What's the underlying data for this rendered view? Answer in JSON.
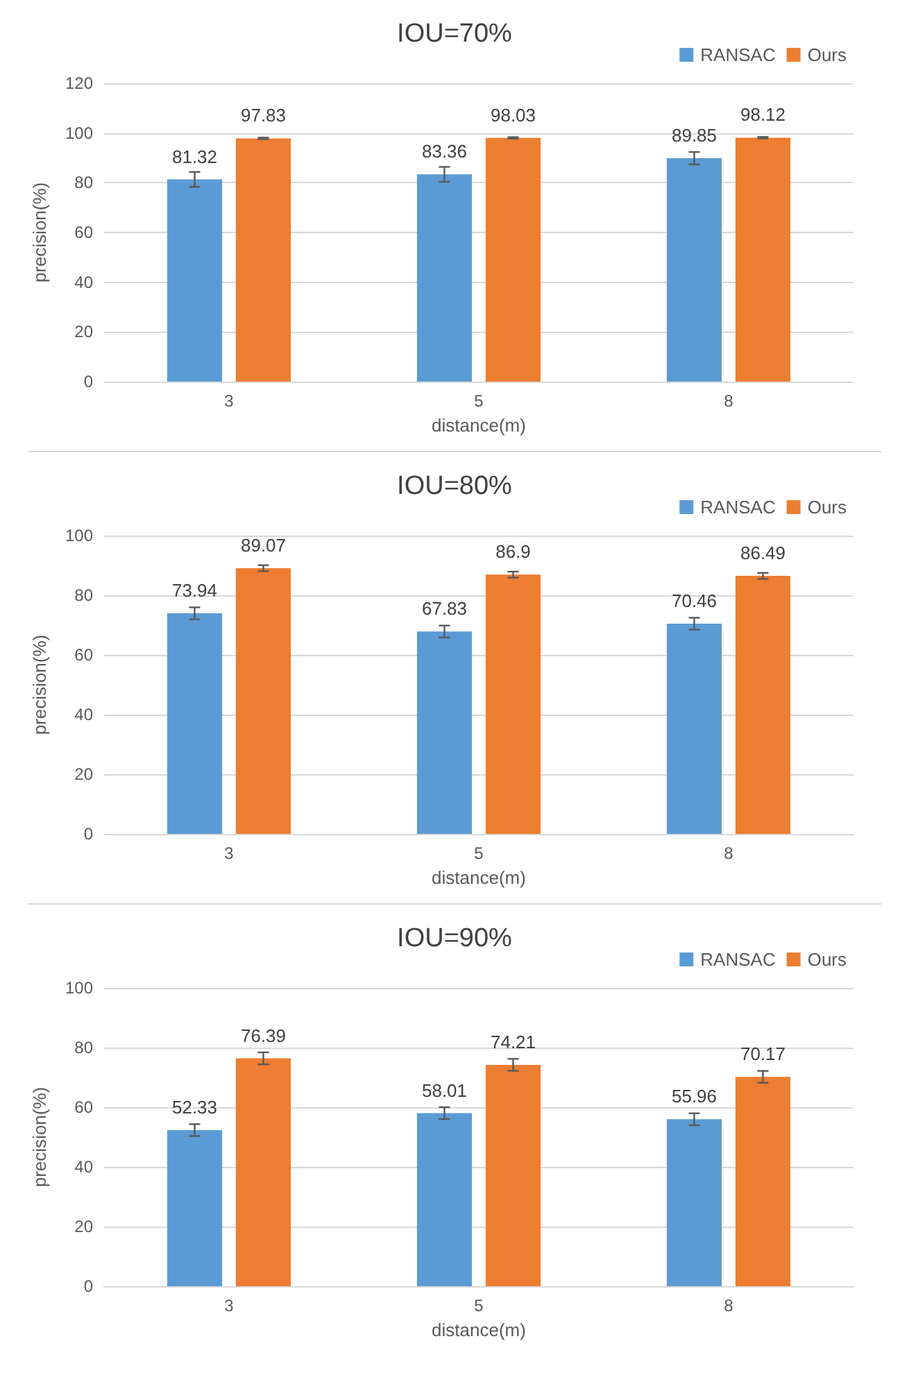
{
  "chart_data": [
    {
      "type": "bar",
      "title": "IOU=70%",
      "xlabel": "distance(m)",
      "ylabel": "precision(%)",
      "categories": [
        "3",
        "5",
        "8"
      ],
      "series": [
        {
          "name": "RANSAC",
          "color": "#5b9bd5",
          "values": [
            81.32,
            83.36,
            89.85
          ],
          "errors": [
            3,
            3,
            2.5
          ]
        },
        {
          "name": "Ours",
          "color": "#ed7d31",
          "values": [
            97.83,
            98.03,
            98.12
          ],
          "errors": [
            0.3,
            0.3,
            0.3
          ]
        }
      ],
      "ylim": [
        0,
        120
      ],
      "yticks": [
        0,
        20,
        40,
        60,
        80,
        100,
        120
      ],
      "grid": "y",
      "legend": "top right",
      "data_labels": true
    },
    {
      "type": "bar",
      "title": "IOU=80%",
      "xlabel": "distance(m)",
      "ylabel": "precision(%)",
      "categories": [
        "3",
        "5",
        "8"
      ],
      "series": [
        {
          "name": "RANSAC",
          "color": "#5b9bd5",
          "values": [
            73.94,
            67.83,
            70.46
          ],
          "errors": [
            2,
            2,
            2
          ]
        },
        {
          "name": "Ours",
          "color": "#ed7d31",
          "values": [
            89.07,
            86.9,
            86.49
          ],
          "errors": [
            1,
            1,
            1
          ]
        }
      ],
      "ylim": [
        0,
        100
      ],
      "yticks": [
        0,
        20,
        40,
        60,
        80,
        100
      ],
      "grid": "y",
      "legend": "top right",
      "data_labels": true
    },
    {
      "type": "bar",
      "title": "IOU=90%",
      "xlabel": "distance(m)",
      "ylabel": "precision(%)",
      "categories": [
        "3",
        "5",
        "8"
      ],
      "series": [
        {
          "name": "RANSAC",
          "color": "#5b9bd5",
          "values": [
            52.33,
            58.01,
            55.96
          ],
          "errors": [
            2,
            2,
            2
          ]
        },
        {
          "name": "Ours",
          "color": "#ed7d31",
          "values": [
            76.39,
            74.21,
            70.17
          ],
          "errors": [
            2,
            2,
            2
          ]
        }
      ],
      "ylim": [
        0,
        100
      ],
      "yticks": [
        0,
        20,
        40,
        60,
        80,
        100
      ],
      "grid": "y",
      "legend": "top right",
      "data_labels": true
    }
  ]
}
